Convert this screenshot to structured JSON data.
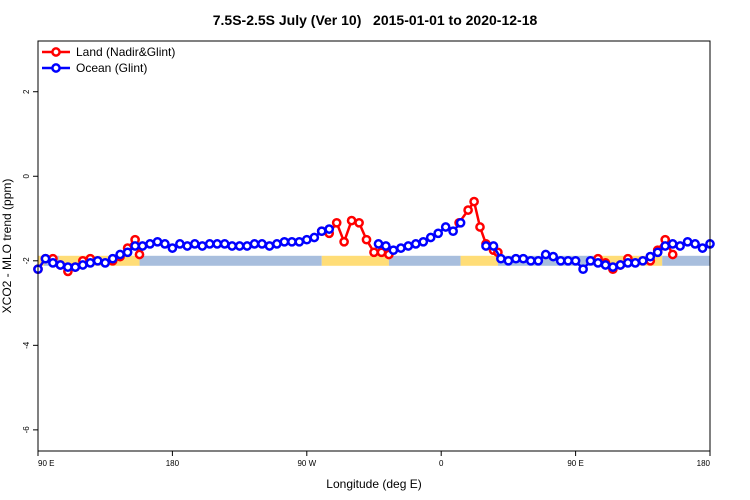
{
  "chart_data": {
    "type": "line",
    "title": "7.5S-2.5S July (Ver 10)   2015-01-01 to 2020-12-18",
    "xlabel": "Longitude (deg E)",
    "ylabel": "XCO2 - MLO trend (ppm)",
    "xlim": [
      0,
      450
    ],
    "ylim": [
      -6.5,
      3.2
    ],
    "x_note": "x is continuous degrees of longitude eastward starting at 90 E (0 = 90 E, 450 = 180 after wrapping past 0)",
    "x_ticks": [
      {
        "x": 0,
        "label": "90 E"
      },
      {
        "x": 90,
        "label": "180"
      },
      {
        "x": 180,
        "label": "90 W"
      },
      {
        "x": 270,
        "label": "0"
      },
      {
        "x": 360,
        "label": "90 E"
      },
      {
        "x": 450,
        "label": "180"
      }
    ],
    "y_ticks": [
      2,
      0,
      -2,
      -4,
      -6
    ],
    "legend": {
      "position": "top-left",
      "entries": [
        {
          "label": "Land (Nadir&Glint)",
          "color": "#ff0000"
        },
        {
          "label": "Ocean (Glint)",
          "color": "#0000ff"
        }
      ]
    },
    "surface_band": {
      "y": -2.0,
      "land_color": "#ffdd77",
      "ocean_color": "#a8bedd",
      "segments": [
        {
          "surface": "land",
          "x": [
            0,
            4
          ]
        },
        {
          "surface": "ocean",
          "x": [
            4,
            14
          ]
        },
        {
          "surface": "land",
          "x": [
            14,
            68
          ]
        },
        {
          "surface": "ocean",
          "x": [
            68,
            190
          ]
        },
        {
          "surface": "land",
          "x": [
            190,
            235
          ]
        },
        {
          "surface": "ocean",
          "x": [
            235,
            283
          ]
        },
        {
          "surface": "land",
          "x": [
            283,
            308
          ]
        },
        {
          "surface": "ocean",
          "x": [
            308,
            375
          ]
        },
        {
          "surface": "land",
          "x": [
            375,
            418
          ]
        },
        {
          "surface": "ocean",
          "x": [
            418,
            450
          ]
        }
      ]
    },
    "series": [
      {
        "name": "Land (Nadir&Glint)",
        "color": "#ff0000",
        "segments": [
          [
            [
              0,
              -2.2
            ],
            [
              5,
              -1.95
            ],
            [
              10,
              -1.95
            ]
          ],
          [
            [
              15,
              -2.1
            ],
            [
              20,
              -2.25
            ],
            [
              25,
              -2.15
            ],
            [
              30,
              -2.0
            ],
            [
              35,
              -1.95
            ]
          ],
          [
            [
              50,
              -2.0
            ],
            [
              55,
              -1.9
            ],
            [
              60,
              -1.7
            ],
            [
              65,
              -1.5
            ],
            [
              68,
              -1.85
            ]
          ],
          [
            [
              190,
              -1.3
            ],
            [
              195,
              -1.35
            ],
            [
              200,
              -1.1
            ],
            [
              205,
              -1.55
            ],
            [
              210,
              -1.05
            ],
            [
              215,
              -1.1
            ],
            [
              220,
              -1.5
            ],
            [
              225,
              -1.8
            ],
            [
              230,
              -1.8
            ],
            [
              235,
              -1.85
            ]
          ],
          [
            [
              282,
              -1.1
            ],
            [
              288,
              -0.8
            ],
            [
              292,
              -0.6
            ],
            [
              296,
              -1.2
            ],
            [
              300,
              -1.6
            ],
            [
              305,
              -1.75
            ],
            [
              308,
              -1.8
            ]
          ],
          [
            [
              375,
              -1.95
            ],
            [
              380,
              -2.05
            ],
            [
              385,
              -2.2
            ],
            [
              390,
              -2.1
            ],
            [
              395,
              -1.95
            ]
          ],
          [
            [
              410,
              -2.0
            ],
            [
              415,
              -1.75
            ],
            [
              420,
              -1.5
            ],
            [
              425,
              -1.85
            ]
          ]
        ]
      },
      {
        "name": "Ocean (Glint)",
        "color": "#0000ff",
        "segments": [
          [
            [
              0,
              -2.2
            ],
            [
              5,
              -1.95
            ],
            [
              10,
              -2.05
            ],
            [
              15,
              -2.1
            ],
            [
              20,
              -2.15
            ],
            [
              25,
              -2.15
            ],
            [
              30,
              -2.1
            ],
            [
              35,
              -2.05
            ],
            [
              40,
              -2.0
            ],
            [
              45,
              -2.05
            ],
            [
              50,
              -1.95
            ],
            [
              55,
              -1.85
            ],
            [
              60,
              -1.8
            ],
            [
              65,
              -1.65
            ],
            [
              70,
              -1.65
            ],
            [
              75,
              -1.6
            ],
            [
              80,
              -1.55
            ],
            [
              85,
              -1.6
            ],
            [
              90,
              -1.7
            ],
            [
              95,
              -1.6
            ],
            [
              100,
              -1.65
            ],
            [
              105,
              -1.6
            ],
            [
              110,
              -1.65
            ],
            [
              115,
              -1.6
            ],
            [
              120,
              -1.6
            ],
            [
              125,
              -1.6
            ],
            [
              130,
              -1.65
            ],
            [
              135,
              -1.65
            ],
            [
              140,
              -1.65
            ],
            [
              145,
              -1.6
            ],
            [
              150,
              -1.6
            ],
            [
              155,
              -1.65
            ],
            [
              160,
              -1.6
            ],
            [
              165,
              -1.55
            ],
            [
              170,
              -1.55
            ],
            [
              175,
              -1.55
            ],
            [
              180,
              -1.5
            ],
            [
              185,
              -1.45
            ],
            [
              190,
              -1.3
            ],
            [
              195,
              -1.25
            ]
          ],
          [
            [
              228,
              -1.6
            ],
            [
              233,
              -1.65
            ],
            [
              238,
              -1.75
            ],
            [
              243,
              -1.7
            ],
            [
              248,
              -1.65
            ],
            [
              253,
              -1.6
            ],
            [
              258,
              -1.55
            ],
            [
              263,
              -1.45
            ],
            [
              268,
              -1.35
            ],
            [
              273,
              -1.2
            ],
            [
              278,
              -1.3
            ],
            [
              283,
              -1.1
            ]
          ],
          [
            [
              300,
              -1.65
            ],
            [
              305,
              -1.65
            ],
            [
              310,
              -1.95
            ],
            [
              315,
              -2.0
            ],
            [
              320,
              -1.95
            ],
            [
              325,
              -1.95
            ],
            [
              330,
              -2.0
            ],
            [
              335,
              -2.0
            ],
            [
              340,
              -1.85
            ],
            [
              345,
              -1.9
            ],
            [
              350,
              -2.0
            ],
            [
              355,
              -2.0
            ],
            [
              360,
              -2.0
            ],
            [
              365,
              -2.2
            ],
            [
              370,
              -2.0
            ],
            [
              375,
              -2.05
            ],
            [
              380,
              -2.1
            ],
            [
              385,
              -2.15
            ],
            [
              390,
              -2.1
            ],
            [
              395,
              -2.05
            ],
            [
              400,
              -2.05
            ],
            [
              405,
              -2.0
            ],
            [
              410,
              -1.9
            ],
            [
              415,
              -1.8
            ],
            [
              420,
              -1.65
            ],
            [
              425,
              -1.6
            ],
            [
              430,
              -1.65
            ],
            [
              435,
              -1.55
            ],
            [
              440,
              -1.6
            ],
            [
              445,
              -1.7
            ],
            [
              450,
              -1.6
            ]
          ]
        ]
      }
    ]
  }
}
